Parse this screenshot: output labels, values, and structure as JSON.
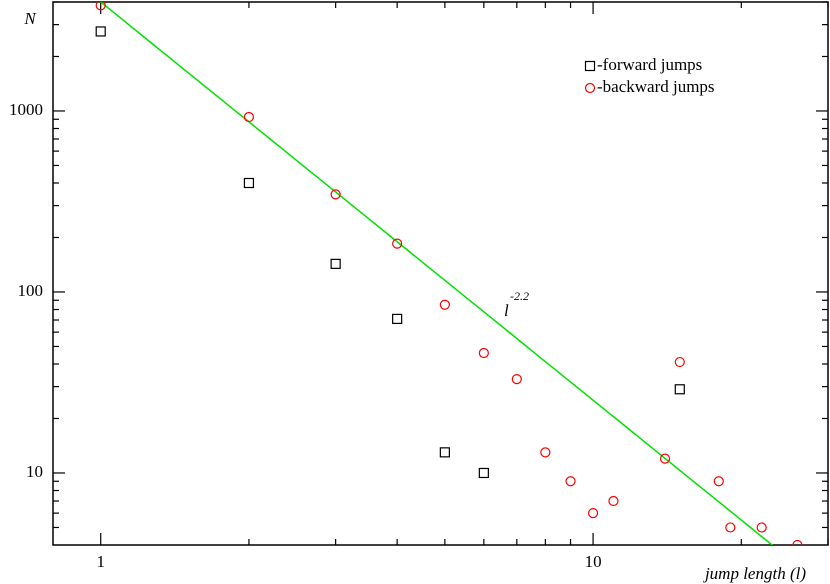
{
  "chart_data": {
    "type": "scatter",
    "log_x": true,
    "log_y": true,
    "xlabel": "jump length (l)",
    "ylabel": "N",
    "xlim": [
      0.8,
      30
    ],
    "ylim": [
      4,
      4000
    ],
    "xticks": [
      1,
      10
    ],
    "yticks": [
      10,
      100,
      1000
    ],
    "xminor_ticks": [
      2,
      3,
      4,
      5,
      6,
      7,
      8,
      9,
      20,
      30
    ],
    "yminor_ticks": [
      5,
      6,
      7,
      8,
      9,
      20,
      30,
      40,
      50,
      60,
      70,
      80,
      90,
      200,
      300,
      400,
      500,
      600,
      700,
      800,
      900,
      2000,
      3000,
      4000
    ],
    "legend": "upper right",
    "series": [
      {
        "name": "-forward jumps",
        "marker": "square",
        "color": "#000000",
        "x": [
          1,
          2,
          3,
          4,
          5,
          6,
          15
        ],
        "values": [
          2750,
          400,
          143,
          71,
          13,
          10,
          29
        ]
      },
      {
        "name": "-backward jumps",
        "marker": "circle",
        "color": "#ff0000",
        "x": [
          1,
          2,
          3,
          4,
          5,
          6,
          7,
          8,
          9,
          10,
          11,
          14,
          15,
          18,
          19,
          22,
          26
        ],
        "values": [
          3830,
          926,
          346,
          185,
          85,
          46,
          33,
          13,
          9,
          6,
          7,
          12,
          41,
          9,
          5,
          5,
          4
        ]
      }
    ],
    "fit": {
      "base": "l",
      "exponent": -2.2,
      "coefficient": 4000,
      "color": "#00e000"
    }
  }
}
